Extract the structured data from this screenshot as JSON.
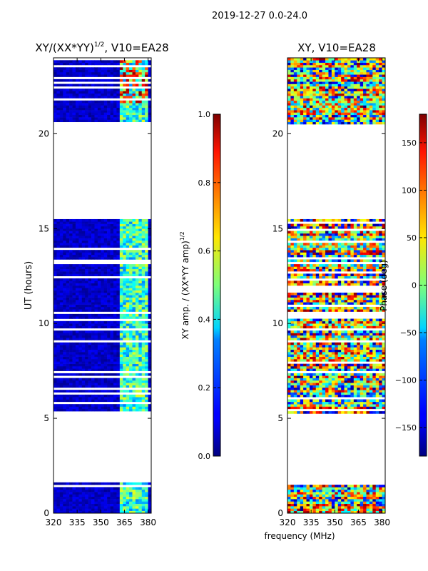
{
  "suptitle": "2019-12-27 0.0-24.0",
  "chart_data": [
    {
      "type": "heatmap",
      "title": "XY/(XX*YY)^1/2, V10=EA28",
      "title_main": "XY/(XX*YY)",
      "title_sup": "1/2",
      "title_tail": ", V10=EA28",
      "xlabel": "frequency (MHz)",
      "ylabel": "UT (hours)",
      "xlim": [
        320,
        382
      ],
      "ylim": [
        0,
        24
      ],
      "xticks": [
        320,
        335,
        350,
        365,
        380
      ],
      "yticks": [
        0,
        5,
        10,
        15,
        20
      ],
      "data_blocks_hours": [
        [
          0.0,
          1.7
        ],
        [
          5.2,
          15.6
        ],
        [
          20.5,
          24.0
        ]
      ],
      "colorbar": {
        "label": "XY amp. / (XX*YY amp)^1/2",
        "label_main": "XY amp. / (XX*YY amp)",
        "label_sup": "1/2",
        "range": [
          0.0,
          1.0
        ],
        "ticks": [
          "0.0",
          "0.2",
          "0.4",
          "0.6",
          "0.8",
          "1.0"
        ],
        "colormap": "jet"
      }
    },
    {
      "type": "heatmap",
      "title": "XY, V10=EA28",
      "xlabel": "frequency (MHz)",
      "ylabel": "",
      "xlim": [
        320,
        382
      ],
      "ylim": [
        0,
        24
      ],
      "xticks": [
        320,
        335,
        350,
        365,
        380
      ],
      "yticks": [
        0,
        5,
        10,
        15,
        20
      ],
      "data_blocks_hours": [
        [
          0.0,
          1.7
        ],
        [
          5.2,
          15.6
        ],
        [
          20.5,
          24.0
        ]
      ],
      "colorbar": {
        "label": "Phase (deg)",
        "range": [
          -180,
          180
        ],
        "ticks": [
          "−150",
          "−100",
          "−50",
          "0",
          "50",
          "100",
          "150"
        ],
        "tick_values": [
          -150,
          -100,
          -50,
          0,
          50,
          100,
          150
        ],
        "colormap": "jet"
      }
    }
  ]
}
